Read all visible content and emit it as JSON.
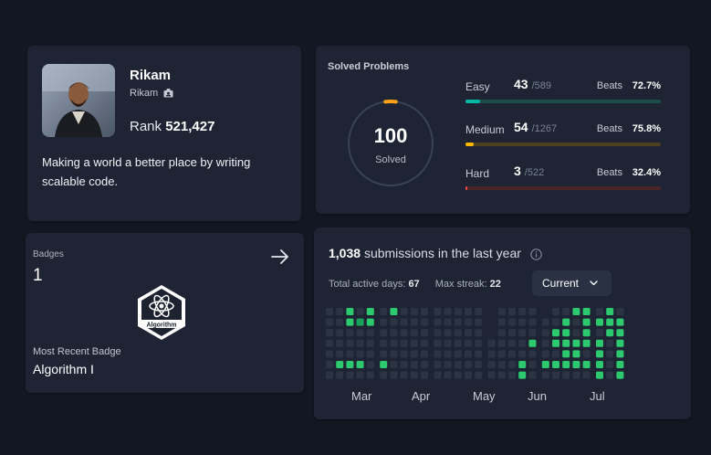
{
  "profile": {
    "name": "Rikam",
    "username": "Rikam",
    "rank_label": "Rank",
    "rank_value": "521,427",
    "bio": "Making a world a better place by writing scalable code.",
    "avatar_icon": "user-photo"
  },
  "badges": {
    "label": "Badges",
    "count": "1",
    "badge_text": "Algorithm",
    "recent_label": "Most Recent Badge",
    "recent_name": "Algorithm I",
    "arrow_icon": "arrow-right-icon"
  },
  "solved": {
    "title": "Solved Problems",
    "count": "100",
    "word": "Solved",
    "ring_fraction": 0.04,
    "difficulties": [
      {
        "name": "Easy",
        "value": "43",
        "total": "/589",
        "beats_label": "Beats",
        "beats": "72.7%",
        "color": "#00b8a3",
        "track": "#1f4d47",
        "fraction": 0.073
      },
      {
        "name": "Medium",
        "value": "54",
        "total": "/1267",
        "beats_label": "Beats",
        "beats": "75.8%",
        "color": "#ffb800",
        "track": "#4d4122",
        "fraction": 0.043
      },
      {
        "name": "Hard",
        "value": "3",
        "total": "/522",
        "beats_label": "Beats",
        "beats": "32.4%",
        "color": "#ef4743",
        "track": "#4a2528",
        "fraction": 0.006
      }
    ]
  },
  "submissions": {
    "count": "1,038",
    "text": "submissions in the last year",
    "active_label": "Total active days:",
    "active_value": "67",
    "streak_label": "Max streak:",
    "streak_value": "22",
    "select_value": "Current",
    "months": [
      "Mar",
      "Apr",
      "May",
      "Jun",
      "Jul"
    ],
    "heatmap_colors": {
      "empty": "#2c3444",
      "low": "#0e6b3c",
      "mid": "#1aa05a",
      "high": "#2cc96f",
      "max": "#46e08a"
    },
    "heatmap_weeks": [
      [
        0,
        0,
        0,
        0,
        0,
        0,
        0
      ],
      [
        0,
        0,
        0,
        0,
        0,
        3,
        0
      ],
      [
        3,
        3,
        0,
        0,
        0,
        3,
        0
      ],
      [
        0,
        2,
        0,
        0,
        0,
        3,
        0
      ],
      [
        3,
        3,
        0,
        0,
        0,
        0,
        0
      ],
      [
        -1,
        -1,
        -1,
        -1,
        -1,
        -1,
        -1
      ],
      [
        0,
        0,
        0,
        0,
        0,
        3,
        0
      ],
      [
        3,
        0,
        0,
        0,
        0,
        0,
        0
      ],
      [
        0,
        0,
        0,
        0,
        0,
        0,
        0
      ],
      [
        0,
        0,
        0,
        0,
        0,
        0,
        0
      ],
      [
        0,
        0,
        0,
        0,
        0,
        0,
        0
      ],
      [
        -1,
        -1,
        -1,
        -1,
        -1,
        -1,
        -1
      ],
      [
        0,
        0,
        0,
        0,
        0,
        0,
        0
      ],
      [
        0,
        0,
        0,
        0,
        0,
        0,
        0
      ],
      [
        0,
        0,
        0,
        0,
        0,
        0,
        0
      ],
      [
        0,
        0,
        0,
        0,
        0,
        0,
        0
      ],
      [
        0,
        0,
        0,
        0,
        0,
        0,
        0
      ],
      [
        -1,
        -1,
        -1,
        -1,
        -1,
        -1,
        -1
      ],
      [
        -1,
        -1,
        -1,
        0,
        0,
        0,
        0
      ],
      [
        0,
        0,
        0,
        0,
        0,
        0,
        0
      ],
      [
        0,
        0,
        0,
        0,
        0,
        0,
        0
      ],
      [
        0,
        0,
        0,
        0,
        0,
        3,
        3
      ],
      [
        0,
        0,
        0,
        3,
        0,
        0,
        0
      ],
      [
        -1,
        -1,
        -1,
        -1,
        -1,
        -1,
        -1
      ],
      [
        -1,
        0,
        0,
        0,
        0,
        3,
        0
      ],
      [
        0,
        0,
        3,
        3,
        0,
        3,
        0
      ],
      [
        0,
        3,
        3,
        3,
        3,
        3,
        0
      ],
      [
        3,
        0,
        0,
        3,
        3,
        3,
        0
      ],
      [
        3,
        3,
        3,
        3,
        0,
        3,
        0
      ],
      [
        -1,
        -1,
        -1,
        -1,
        -1,
        -1,
        -1
      ],
      [
        0,
        3,
        0,
        3,
        3,
        3,
        3
      ],
      [
        3,
        3,
        3,
        0,
        0,
        0,
        0
      ],
      [
        0,
        3,
        3,
        3,
        3,
        3,
        3
      ]
    ]
  }
}
